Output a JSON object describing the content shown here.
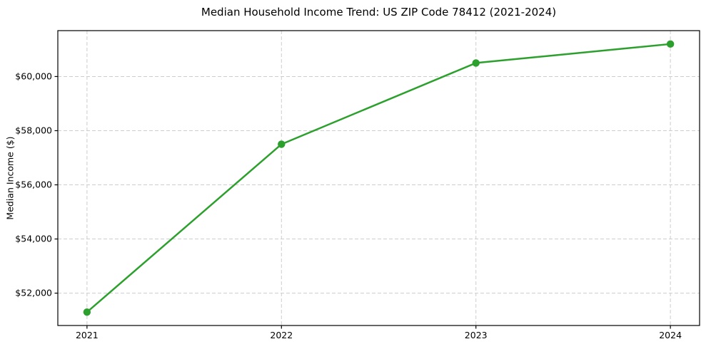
{
  "chart_data": {
    "type": "line",
    "title": "Median Household Income Trend: US ZIP Code 78412 (2021-2024)",
    "xlabel": "",
    "ylabel": "Median Income ($)",
    "x": [
      2021,
      2022,
      2023,
      2024
    ],
    "x_tick_labels": [
      "2021",
      "2022",
      "2023",
      "2024"
    ],
    "values": [
      51300,
      57500,
      60500,
      61200
    ],
    "y_ticks": [
      52000,
      54000,
      56000,
      58000,
      60000
    ],
    "y_tick_labels": [
      "$52,000",
      "$54,000",
      "$56,000",
      "$58,000",
      "$60,000"
    ],
    "xlim": [
      2020.85,
      2024.15
    ],
    "ylim": [
      50805,
      61695
    ],
    "grid": true,
    "grid_style": "dashed",
    "legend": false,
    "line_color": "#2ca02c",
    "marker": "circle",
    "background_color": "#ffffff",
    "spine_color": "#000000"
  }
}
